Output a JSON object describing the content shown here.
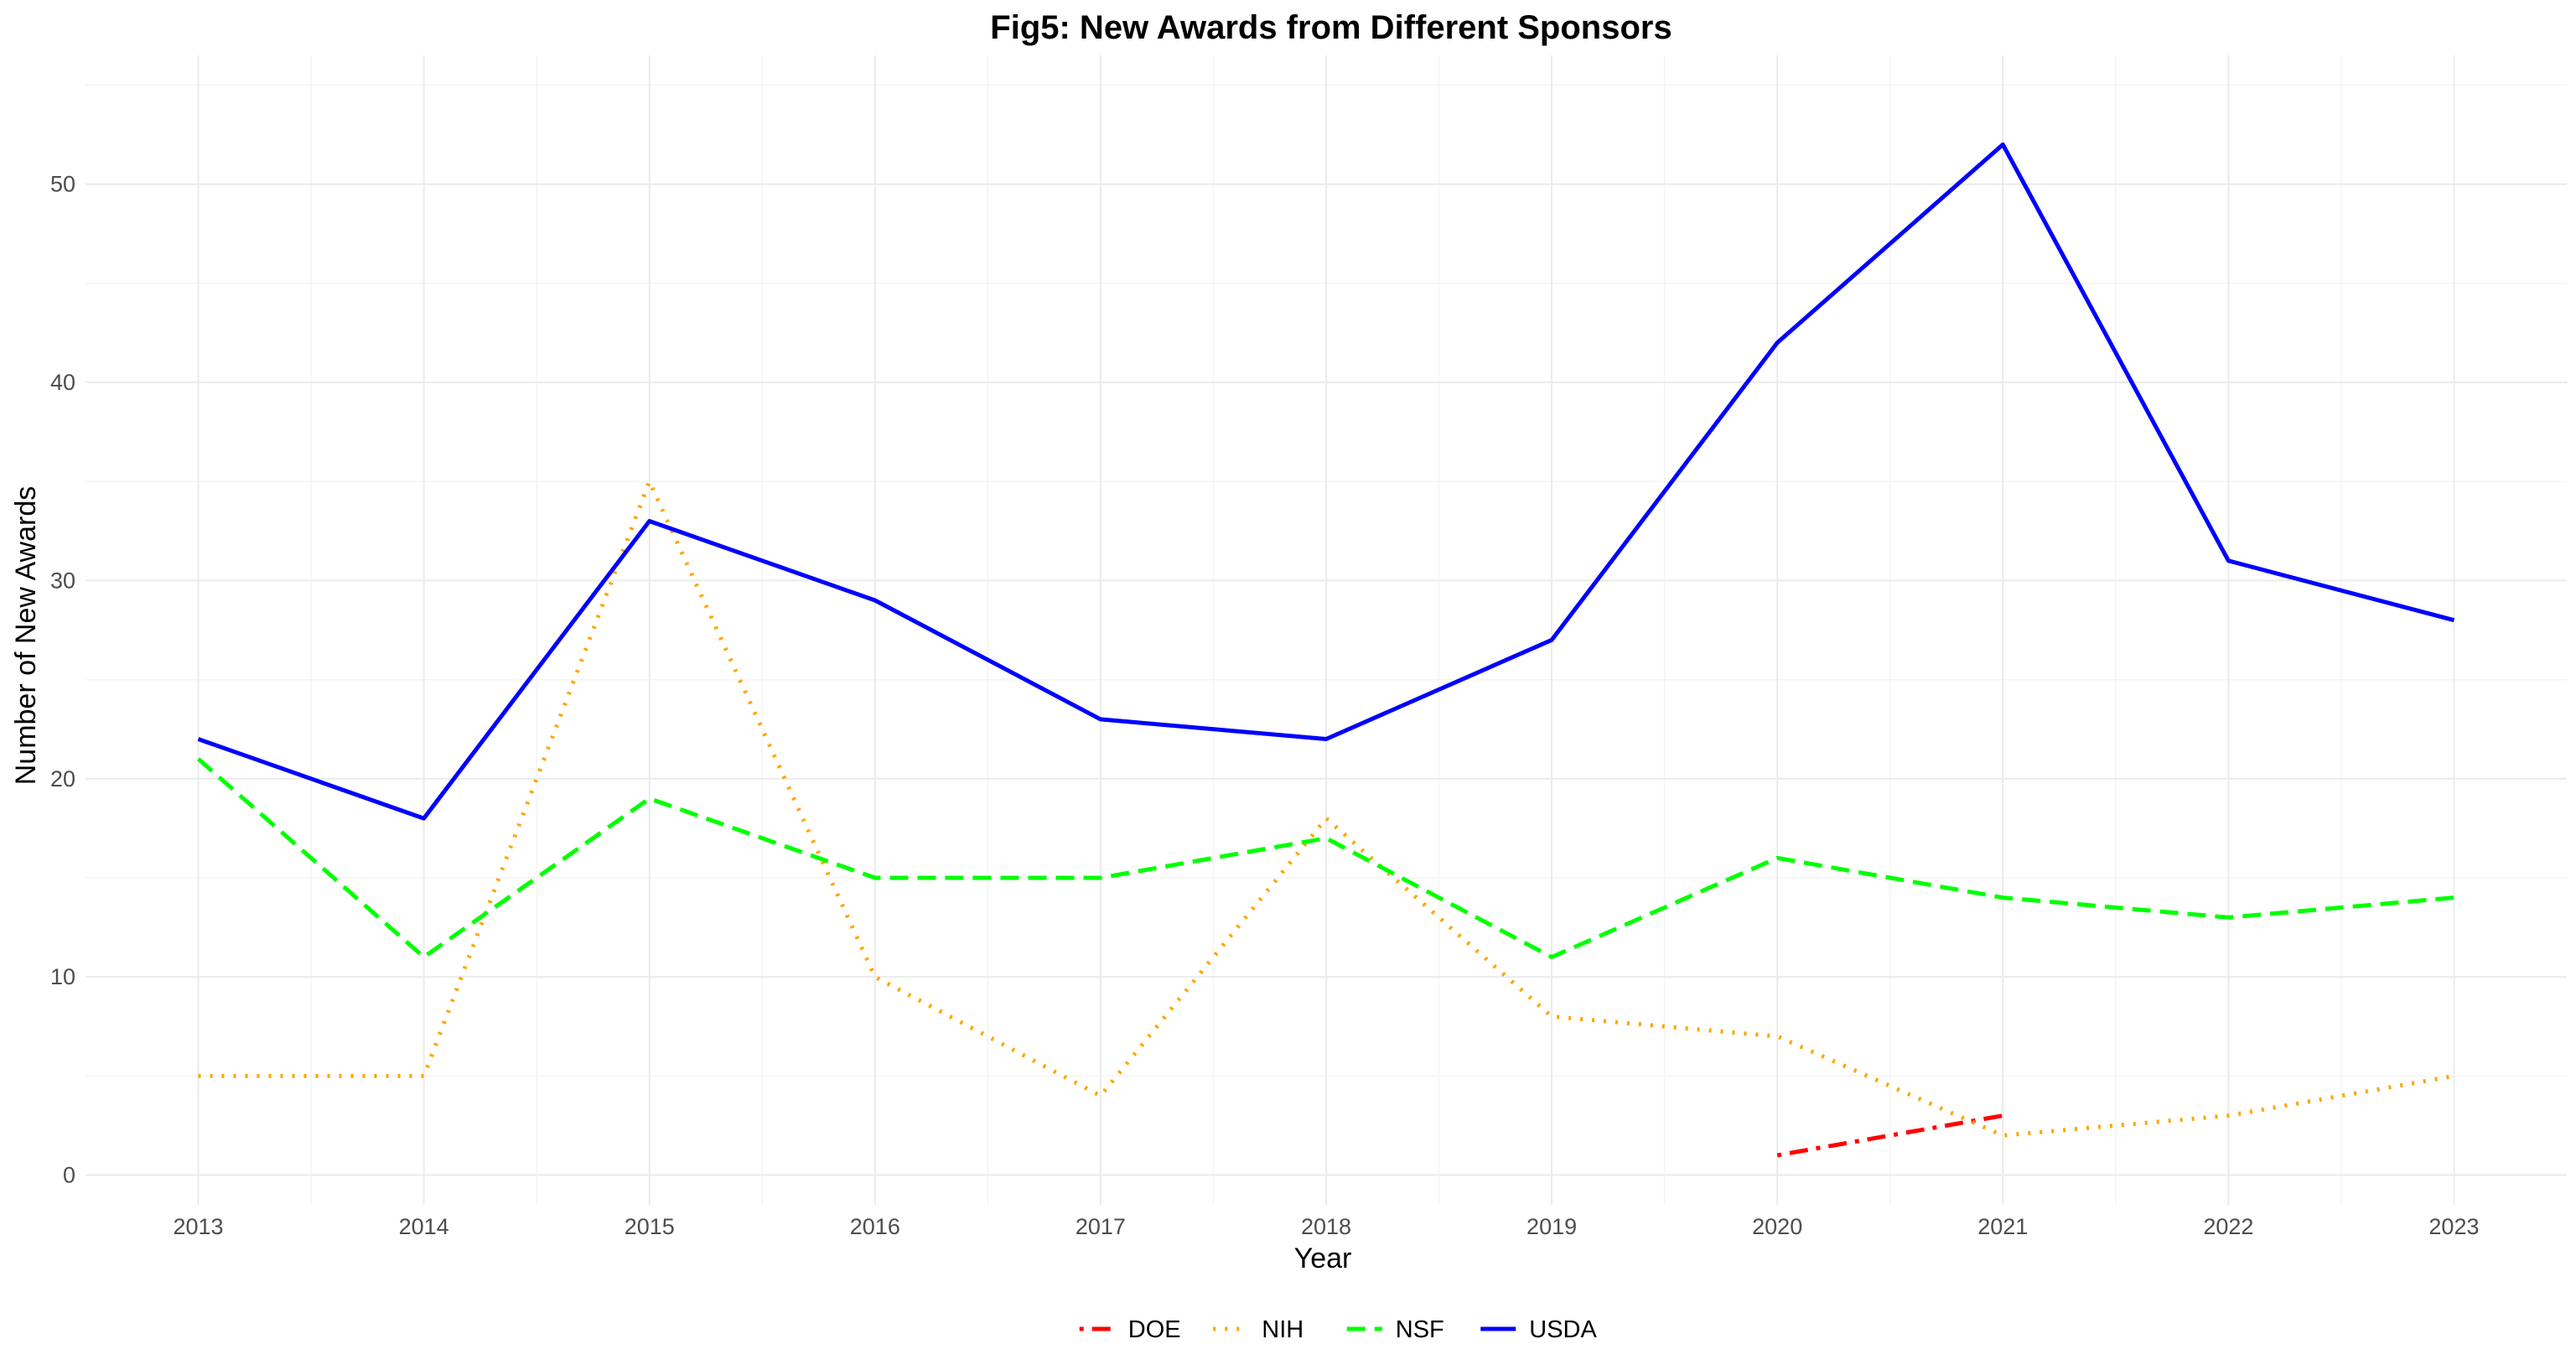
{
  "chart_data": {
    "type": "line",
    "title": "Fig5: New Awards from Different Sponsors",
    "xlabel": "Year",
    "ylabel": "Number of New Awards",
    "x": [
      2013,
      2014,
      2015,
      2016,
      2017,
      2018,
      2019,
      2020,
      2021,
      2022,
      2023
    ],
    "xlim": [
      2012.5,
      2023.5
    ],
    "ylim": [
      -1.5,
      56.5
    ],
    "yticks": [
      0,
      10,
      20,
      30,
      40,
      50
    ],
    "grid": true,
    "legend_position": "bottom",
    "series": [
      {
        "name": "DOE",
        "color": "#ff0000",
        "linestyle": "dashdot",
        "points": [
          [
            2020,
            1
          ],
          [
            2021,
            3
          ]
        ]
      },
      {
        "name": "NIH",
        "color": "#ffa500",
        "linestyle": "dotted",
        "points": [
          [
            2013,
            5
          ],
          [
            2014,
            5
          ],
          [
            2015,
            35
          ],
          [
            2016,
            10
          ],
          [
            2017,
            4
          ],
          [
            2018,
            18
          ],
          [
            2019,
            8
          ],
          [
            2020,
            7
          ],
          [
            2021,
            2
          ],
          [
            2022,
            3
          ],
          [
            2023,
            5
          ]
        ]
      },
      {
        "name": "NSF",
        "color": "#00ff00",
        "linestyle": "dashed",
        "points": [
          [
            2013,
            21
          ],
          [
            2014,
            11
          ],
          [
            2015,
            19
          ],
          [
            2016,
            15
          ],
          [
            2017,
            15
          ],
          [
            2018,
            17
          ],
          [
            2019,
            11
          ],
          [
            2020,
            16
          ],
          [
            2021,
            14
          ],
          [
            2022,
            13
          ],
          [
            2023,
            14
          ]
        ]
      },
      {
        "name": "USDA",
        "color": "#0000ff",
        "linestyle": "solid",
        "points": [
          [
            2013,
            22
          ],
          [
            2014,
            18
          ],
          [
            2015,
            33
          ],
          [
            2016,
            29
          ],
          [
            2017,
            23
          ],
          [
            2018,
            22
          ],
          [
            2019,
            27
          ],
          [
            2020,
            42
          ],
          [
            2021,
            52
          ],
          [
            2022,
            31
          ],
          [
            2023,
            28
          ]
        ]
      }
    ]
  }
}
